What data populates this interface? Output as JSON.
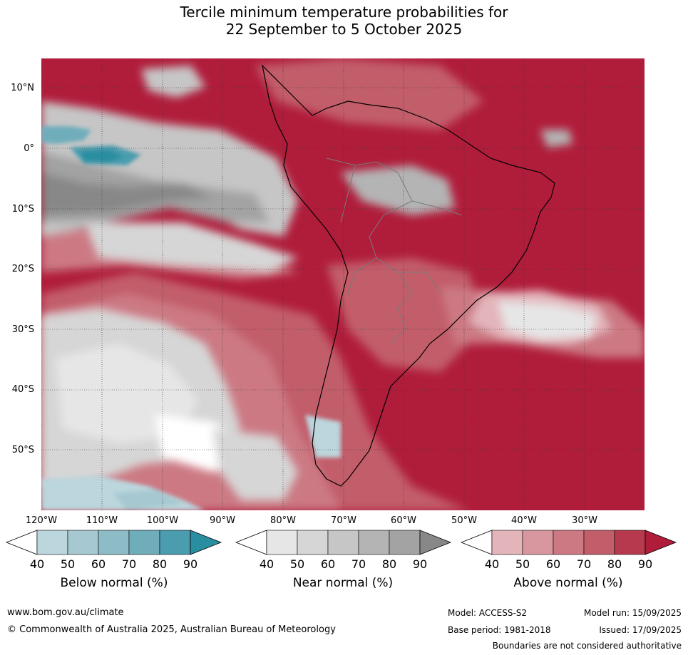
{
  "title_line1": "Tercile minimum temperature probabilities for",
  "title_line2": "22 September to 5 October 2025",
  "lat_labels": [
    "10°N",
    "0°",
    "10°S",
    "20°S",
    "30°S",
    "40°S",
    "50°S"
  ],
  "lon_labels": [
    "120°W",
    "110°W",
    "100°W",
    "90°W",
    "80°W",
    "70°W",
    "60°W",
    "50°W",
    "40°W",
    "30°W"
  ],
  "legend": {
    "below": {
      "title": "Below normal (%)",
      "ticks": [
        "40",
        "50",
        "60",
        "70",
        "80",
        "90"
      ],
      "colors": [
        "#bcd6dd",
        "#a6c9d1",
        "#8dbcc6",
        "#6fadbb",
        "#4a9cae",
        "#2a8ea1"
      ]
    },
    "near": {
      "title": "Near normal (%)",
      "ticks": [
        "40",
        "50",
        "60",
        "70",
        "80",
        "90"
      ],
      "colors": [
        "#e6e6e6",
        "#d6d6d6",
        "#c6c6c6",
        "#b4b4b4",
        "#a3a3a3",
        "#888888"
      ]
    },
    "above": {
      "title": "Above normal (%)",
      "ticks": [
        "40",
        "50",
        "60",
        "70",
        "80",
        "90"
      ],
      "colors": [
        "#e3b5bb",
        "#d8979f",
        "#cc7983",
        "#c25d6a",
        "#b7394d",
        "#b01d3b"
      ]
    }
  },
  "footer": {
    "website": "www.bom.gov.au/climate",
    "copyright": "© Commonwealth of Australia 2025, Australian Bureau of Meteorology",
    "model": "Model: ACCESS-S2",
    "model_run": "Model run: 15/09/2025",
    "base_period": "Base period: 1981-2018",
    "issued": "Issued: 17/09/2025",
    "disclaimer": "Boundaries are not considered authoritative"
  }
}
